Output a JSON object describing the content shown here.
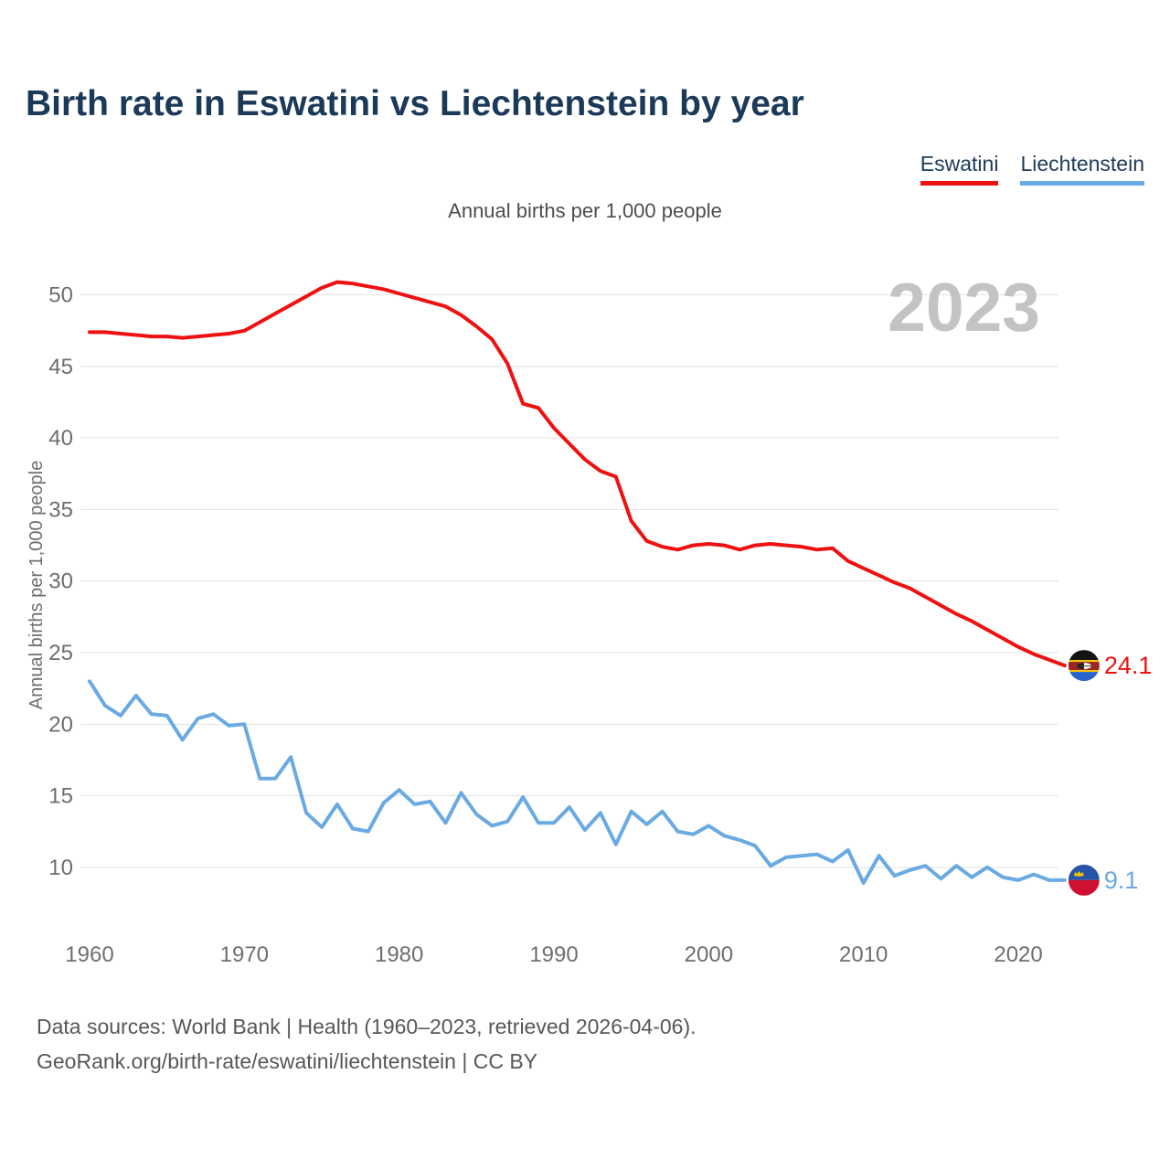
{
  "page": {
    "title": "Birth rate in Eswatini vs Liechtenstein by year",
    "subtitle": "Annual births per 1,000 people",
    "watermark": "2023",
    "footer_line1": "Data sources: World Bank | Health (1960–2023, retrieved 2026-04-06).",
    "footer_line2": "GeoRank.org/birth-rate/eswatini/liechtenstein | CC BY"
  },
  "legend": {
    "position": "top-right",
    "items": [
      {
        "label": "Eswatini",
        "color": "#ee1111"
      },
      {
        "label": "Liechtenstein",
        "color": "#6aaae2"
      }
    ]
  },
  "colors": {
    "title_navy": "#1b3a5a",
    "axis_text_gray": "#6e6e6e",
    "gridline_gray": "#e2e2e2",
    "watermark_gray": "#c3c3c3",
    "eswatini_red": "#ee1111",
    "liechtenstein_blue": "#6aaae2"
  },
  "chart_data": {
    "type": "line",
    "title": "Birth rate in Eswatini vs Liechtenstein by year",
    "subtitle": "Annual births per 1,000 people",
    "xlabel": "",
    "ylabel": "Annual births per 1,000 people",
    "watermark": "2023",
    "grid": "horizontal",
    "legend_position": "top-right",
    "xlim": [
      1960,
      2023
    ],
    "ylim": [
      7,
      52
    ],
    "x_ticks": [
      1960,
      1970,
      1980,
      1990,
      2000,
      2010,
      2020
    ],
    "y_ticks": [
      50,
      45,
      40,
      35,
      30,
      25,
      20,
      15,
      10
    ],
    "x": [
      1960,
      1961,
      1962,
      1963,
      1964,
      1965,
      1966,
      1967,
      1968,
      1969,
      1970,
      1971,
      1972,
      1973,
      1974,
      1975,
      1976,
      1977,
      1978,
      1979,
      1980,
      1981,
      1982,
      1983,
      1984,
      1985,
      1986,
      1987,
      1988,
      1989,
      1990,
      1991,
      1992,
      1993,
      1994,
      1995,
      1996,
      1997,
      1998,
      1999,
      2000,
      2001,
      2002,
      2003,
      2004,
      2005,
      2006,
      2007,
      2008,
      2009,
      2010,
      2011,
      2012,
      2013,
      2014,
      2015,
      2016,
      2017,
      2018,
      2019,
      2020,
      2021,
      2022,
      2023
    ],
    "series": [
      {
        "name": "Eswatini",
        "color": "#ee1111",
        "flag_icon": "eswatini-flag",
        "end_label": "24.1",
        "values": [
          47.4,
          47.4,
          47.3,
          47.2,
          47.1,
          47.1,
          47.0,
          47.1,
          47.2,
          47.3,
          47.5,
          48.1,
          48.7,
          49.3,
          49.9,
          50.5,
          50.9,
          50.8,
          50.6,
          50.4,
          50.1,
          49.8,
          49.5,
          49.2,
          48.6,
          47.8,
          46.9,
          45.2,
          42.4,
          42.1,
          40.7,
          39.6,
          38.5,
          37.7,
          37.3,
          34.2,
          32.8,
          32.4,
          32.2,
          32.5,
          32.6,
          32.5,
          32.2,
          32.5,
          32.6,
          32.5,
          32.4,
          32.2,
          32.3,
          31.4,
          30.9,
          30.4,
          29.9,
          29.5,
          28.9,
          28.3,
          27.7,
          27.2,
          26.6,
          26.0,
          25.4,
          24.9,
          24.5,
          24.1
        ]
      },
      {
        "name": "Liechtenstein",
        "color": "#6aaae2",
        "flag_icon": "liechtenstein-flag",
        "end_label": "9.1",
        "values": [
          23.0,
          21.3,
          20.6,
          22.0,
          20.7,
          20.6,
          18.9,
          20.4,
          20.7,
          19.9,
          20.0,
          16.2,
          16.2,
          17.7,
          13.8,
          12.8,
          14.4,
          12.7,
          12.5,
          14.5,
          15.4,
          14.4,
          14.6,
          13.1,
          15.2,
          13.7,
          12.9,
          13.2,
          14.9,
          13.1,
          13.1,
          14.2,
          12.6,
          13.8,
          11.6,
          13.9,
          13.0,
          13.9,
          12.5,
          12.3,
          12.9,
          12.2,
          11.9,
          11.5,
          10.1,
          10.7,
          10.8,
          10.9,
          10.4,
          11.2,
          8.9,
          10.8,
          9.4,
          9.8,
          10.1,
          9.2,
          10.1,
          9.3,
          10.0,
          9.3,
          9.1,
          9.5,
          9.1,
          9.1
        ]
      }
    ]
  }
}
